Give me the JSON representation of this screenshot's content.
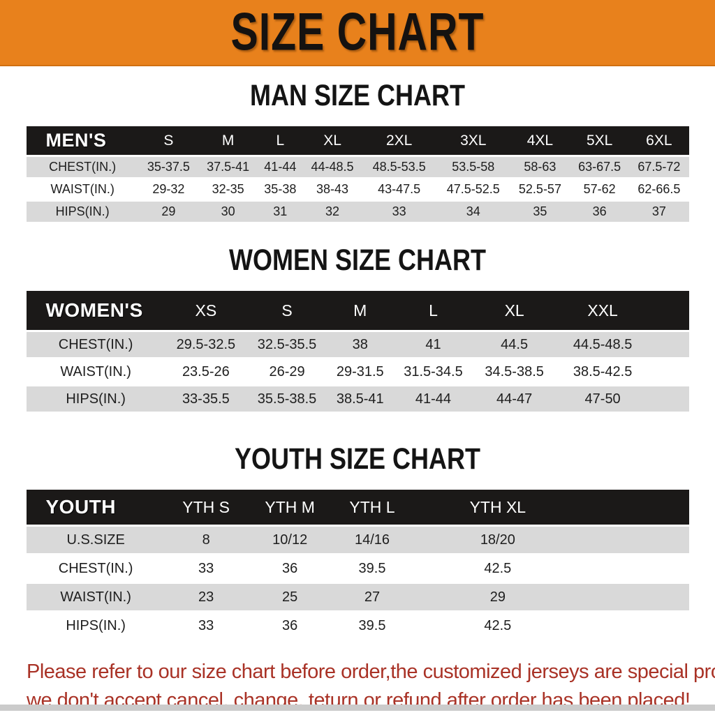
{
  "banner": {
    "title": "SIZE CHART",
    "bg_color": "#E8811C",
    "text_color": "#151210"
  },
  "sections": [
    {
      "id": "men",
      "heading": "MAN SIZE CHART",
      "table": {
        "header": [
          "MEN'S",
          "S",
          "M",
          "L",
          "XL",
          "2XL",
          "3XL",
          "4XL",
          "5XL",
          "6XL"
        ],
        "rows": [
          [
            "CHEST(IN.)",
            "35-37.5",
            "37.5-41",
            "41-44",
            "44-48.5",
            "48.5-53.5",
            "53.5-58",
            "58-63",
            "63-67.5",
            "67.5-72"
          ],
          [
            "WAIST(IN.)",
            "29-32",
            "32-35",
            "35-38",
            "38-43",
            "43-47.5",
            "47.5-52.5",
            "52.5-57",
            "57-62",
            "62-66.5"
          ],
          [
            "HIPS(IN.)",
            "29",
            "30",
            "31",
            "32",
            "33",
            "34",
            "35",
            "36",
            "37"
          ]
        ]
      }
    },
    {
      "id": "women",
      "heading": "WOMEN SIZE CHART",
      "table": {
        "header": [
          "WOMEN'S",
          "XS",
          "S",
          "M",
          "L",
          "XL",
          "XXL"
        ],
        "rows": [
          [
            "CHEST(IN.)",
            "29.5-32.5",
            "32.5-35.5",
            "38",
            "41",
            "44.5",
            "44.5-48.5"
          ],
          [
            "WAIST(IN.)",
            "23.5-26",
            "26-29",
            "29-31.5",
            "31.5-34.5",
            "34.5-38.5",
            "38.5-42.5"
          ],
          [
            "HIPS(IN.)",
            "33-35.5",
            "35.5-38.5",
            "38.5-41",
            "41-44",
            "44-47",
            "47-50"
          ]
        ]
      }
    },
    {
      "id": "youth",
      "heading": "YOUTH SIZE CHART",
      "table": {
        "header": [
          "YOUTH",
          "YTH S",
          "YTH M",
          "YTH L",
          "YTH XL"
        ],
        "rows": [
          [
            "U.S.SIZE",
            "8",
            "10/12",
            "14/16",
            "18/20"
          ],
          [
            "CHEST(IN.)",
            "33",
            "36",
            "39.5",
            "42.5"
          ],
          [
            "WAIST(IN.)",
            "23",
            "25",
            "27",
            "29"
          ],
          [
            "HIPS(IN.)",
            "33",
            "36",
            "39.5",
            "42.5"
          ]
        ]
      }
    }
  ],
  "footer": {
    "lines": [
      "Please refer to our size chart before order,the customized jerseys are special products,",
      "we don't accept cancel, change, teturn or refund after order has been placed!"
    ],
    "text_color": "#A93226"
  },
  "colors": {
    "banner_orange": "#E8811C",
    "table_header_black": "#1B1918",
    "row_gray": "#D9D9D9",
    "row_white": "#FFFFFF",
    "bottom_strip_gray": "#CBCBCB"
  }
}
